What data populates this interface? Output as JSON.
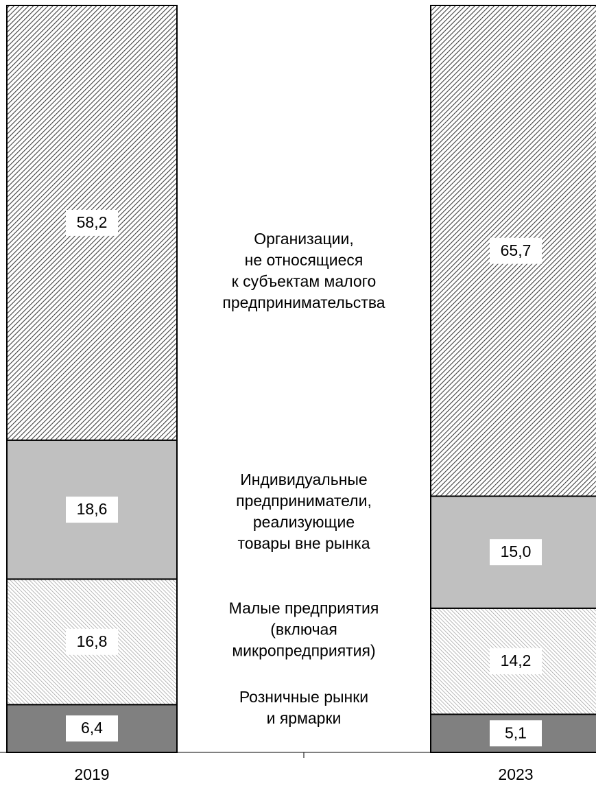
{
  "chart_data": {
    "type": "stacked_bar",
    "categories": [
      "2019",
      "2023"
    ],
    "ylim": [
      0,
      100
    ],
    "series": [
      {
        "name": "Розничные рынки\nи ярмарки",
        "color": "#808080",
        "pattern": "solid",
        "values": [
          6.4,
          5.1
        ],
        "value_labels": [
          "6,4",
          "5,1"
        ]
      },
      {
        "name": "Малые предприятия\n(включая\nмикропредприятия)",
        "color": "#9a9a9a",
        "pattern": "backslash",
        "values": [
          16.8,
          14.2
        ],
        "value_labels": [
          "16,8",
          "14,2"
        ]
      },
      {
        "name": "Индивидуальные\nпредприниматели,\nреализующие\nтовары вне рынка",
        "color": "#c0c0c0",
        "pattern": "solid",
        "values": [
          18.6,
          15.0
        ],
        "value_labels": [
          "18,6",
          "15,0"
        ]
      },
      {
        "name": "Организации,\nне относящиеся\nк субъектам малого\nпредпринимательства",
        "color": "#404040",
        "pattern": "slash",
        "values": [
          58.2,
          65.7
        ],
        "value_labels": [
          "58,2",
          "65,7"
        ]
      }
    ]
  }
}
